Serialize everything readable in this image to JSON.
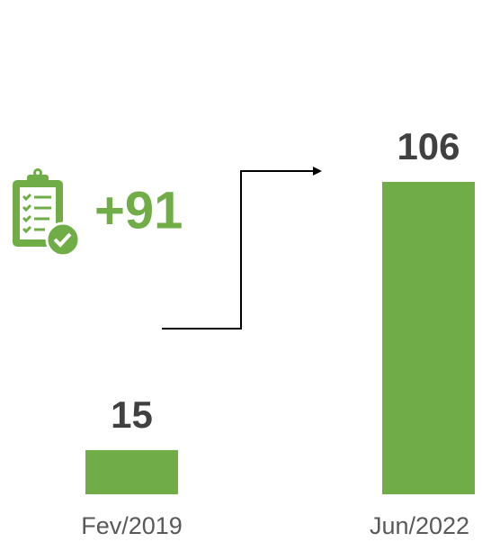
{
  "chart_data": {
    "type": "bar",
    "categories": [
      "Fev/2019",
      "Jun/2022"
    ],
    "values": [
      15,
      106
    ],
    "color": "#70ad47",
    "annotation": "+91"
  }
}
